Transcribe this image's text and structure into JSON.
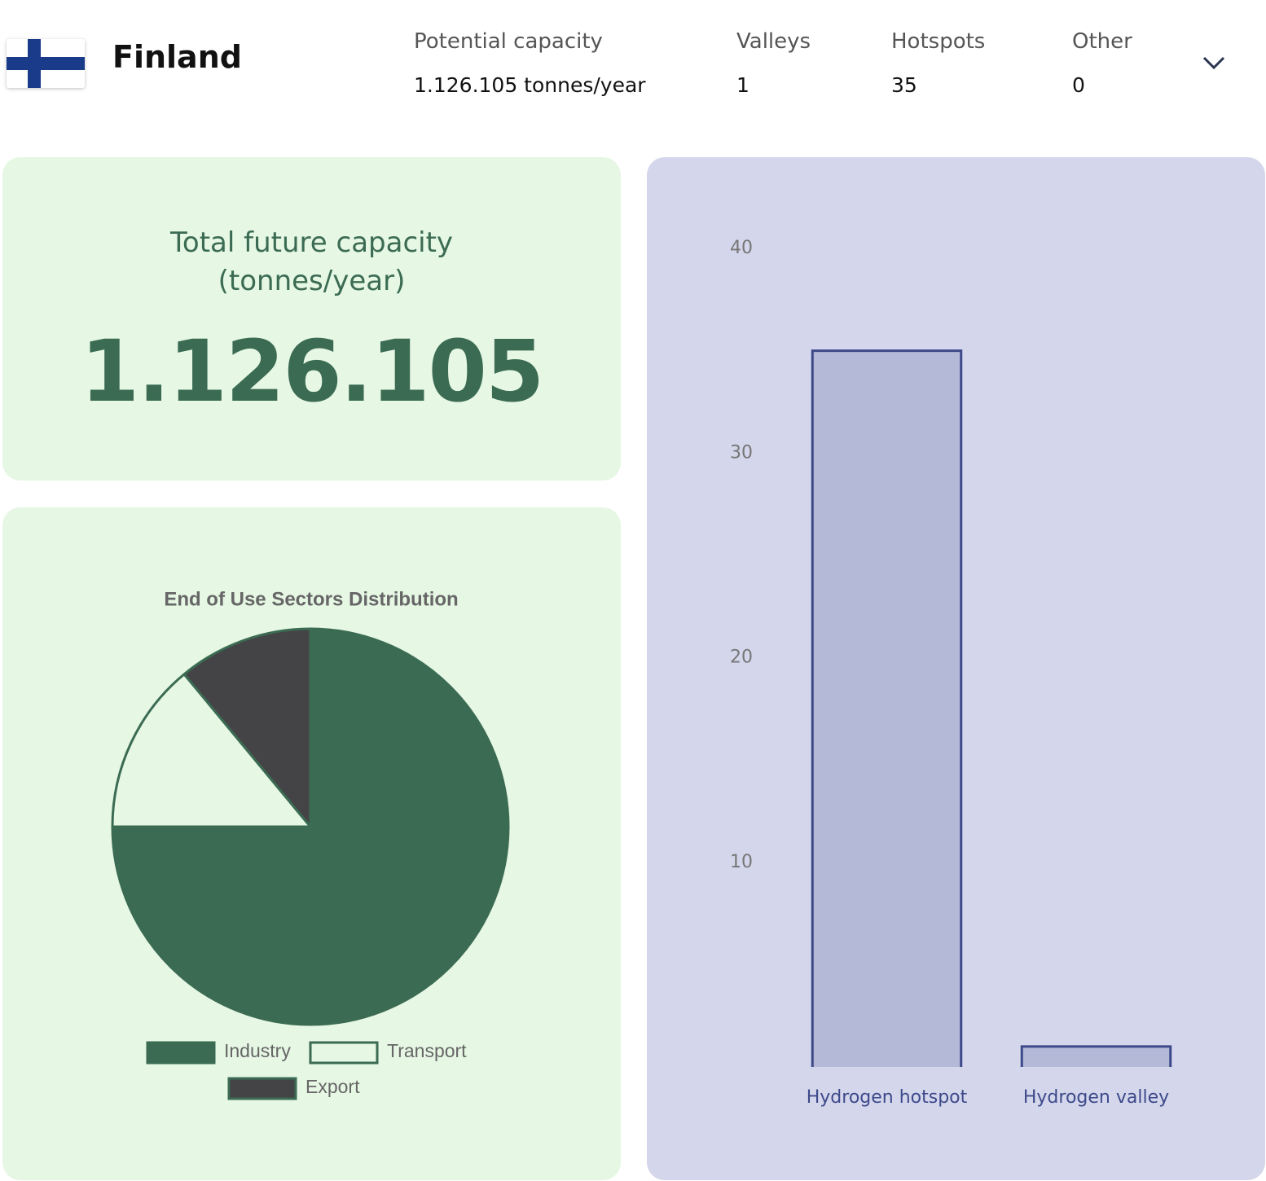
{
  "header": {
    "country": "Finland",
    "stats": [
      {
        "label": "Potential capacity",
        "value": "1.126.105 tonnes/year"
      },
      {
        "label": "Valleys",
        "value": 1
      },
      {
        "label": "Hotspots",
        "value": 35
      },
      {
        "label": "Other",
        "value": 0
      }
    ]
  },
  "capacity_card": {
    "title": "Total future capacity (tonnes/year)",
    "value": "1.126.105"
  },
  "pie_chart": {
    "type": "pie",
    "title": "End of Use Sectors Distribution",
    "categories": [
      "Industry",
      "Transport",
      "Export"
    ],
    "values": [
      75,
      14,
      11
    ],
    "colors": [
      "#3b6b53",
      "#e6f7e4",
      "#444446"
    ],
    "border_color": "#3b6b53"
  },
  "bar_chart": {
    "type": "bar",
    "categories": [
      "Hydrogen hotspot",
      "Hydrogen valley"
    ],
    "values": [
      35,
      1
    ],
    "color": "#b5b9d8",
    "border_color": "#3d4a8a",
    "ylim": [
      0,
      40
    ],
    "yticks": [
      10,
      20,
      30,
      40
    ],
    "grid": false
  }
}
